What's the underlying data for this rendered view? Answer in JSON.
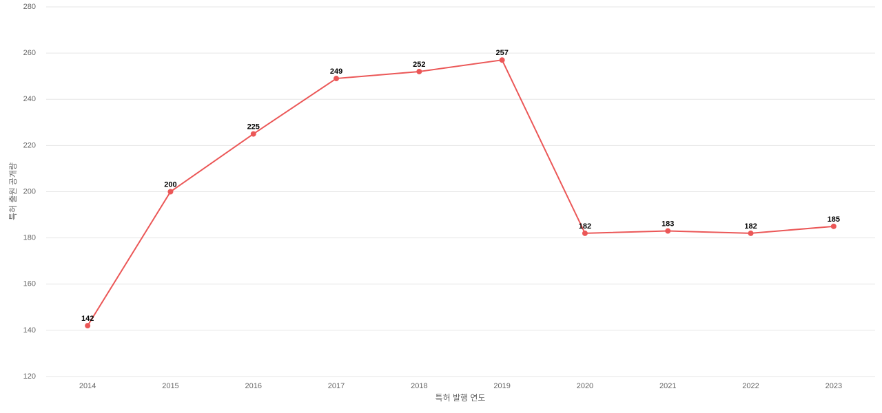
{
  "chart_data": {
    "type": "line",
    "x_label": "특허 발행 연도",
    "y_label": "특허 출원 공개량",
    "categories": [
      "2014",
      "2015",
      "2016",
      "2017",
      "2018",
      "2019",
      "2020",
      "2021",
      "2022",
      "2023"
    ],
    "series": [
      {
        "name": "특허 출원 공개량",
        "color": "#eb5757",
        "values": [
          142,
          200,
          225,
          249,
          252,
          257,
          182,
          183,
          182,
          185
        ]
      }
    ],
    "ylim": [
      120,
      280
    ],
    "yticks": [
      120,
      140,
      160,
      180,
      200,
      220,
      240,
      260,
      280
    ],
    "grid": true
  }
}
